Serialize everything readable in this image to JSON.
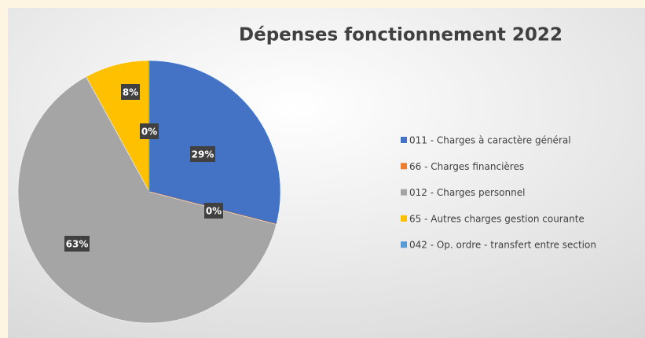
{
  "chart_data": {
    "type": "pie",
    "title": "Dépenses fonctionnement 2022",
    "categories": [
      "011 - Charges à caractère général",
      "66 - Charges financières",
      "012 - Charges personnel",
      "65 - Autres charges gestion courante",
      "042 - Op. ordre - transfert entre section"
    ],
    "values": [
      29,
      0,
      63,
      8,
      0
    ],
    "value_labels": [
      "29%",
      "0%",
      "63%",
      "8%",
      "0%"
    ],
    "colors": [
      "#4472c4",
      "#ed7d31",
      "#a5a5a5",
      "#ffc000",
      "#5b9bd5"
    ],
    "legend": "right"
  }
}
